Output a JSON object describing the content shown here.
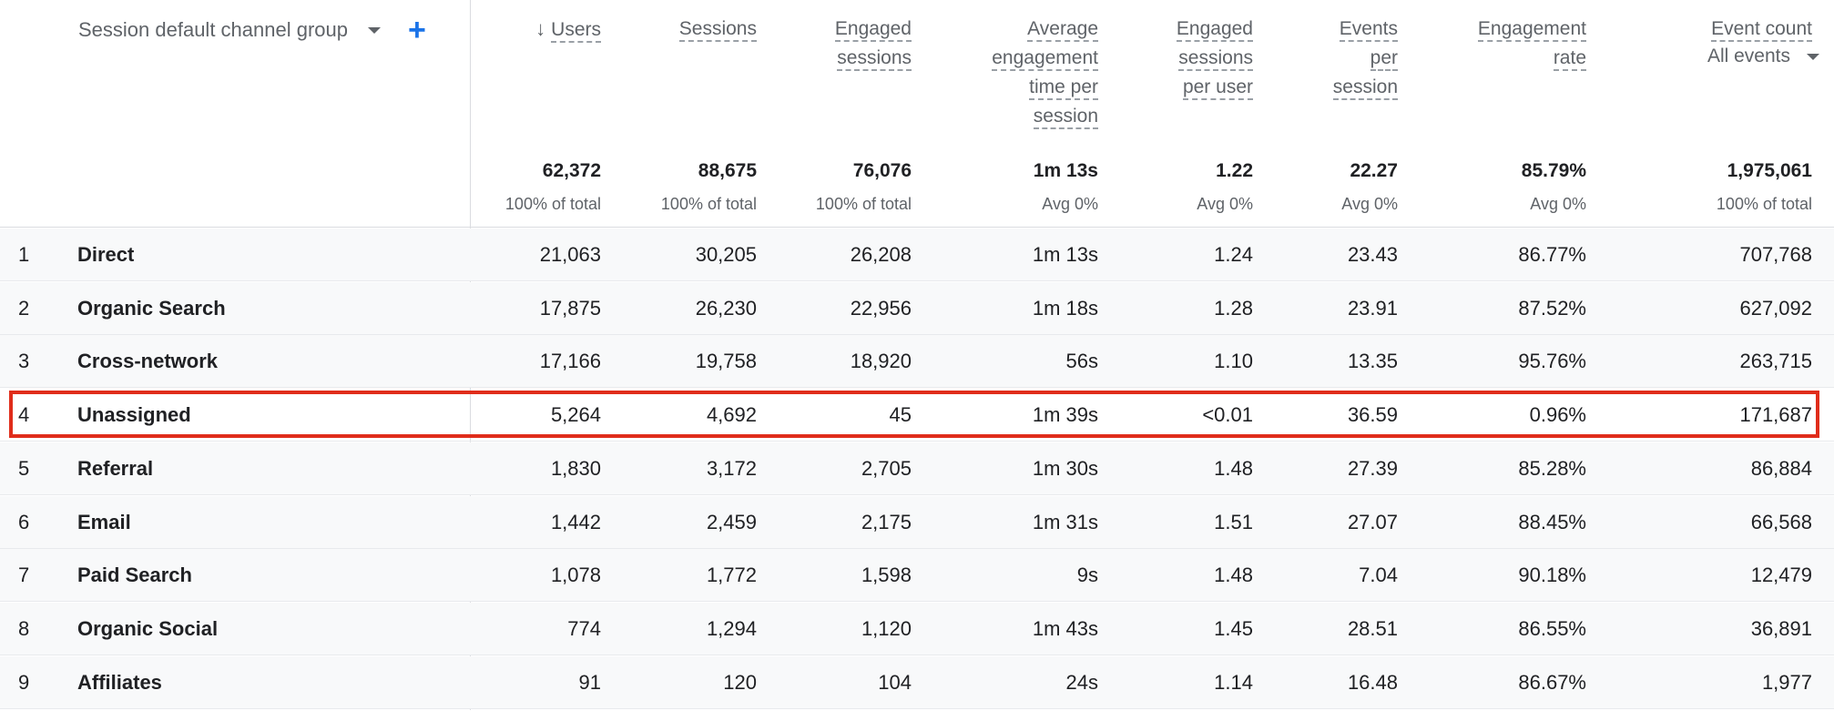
{
  "header": {
    "dimension_label": "Session default channel group",
    "sort_arrow": "↓",
    "add_symbol": "+",
    "columns": [
      {
        "key": "users",
        "lines": [
          "Users"
        ],
        "total": "62,372",
        "total_sub": "100% of total"
      },
      {
        "key": "sessions",
        "lines": [
          "Sessions"
        ],
        "total": "88,675",
        "total_sub": "100% of total"
      },
      {
        "key": "engaged_sessions",
        "lines": [
          "Engaged",
          "sessions"
        ],
        "total": "76,076",
        "total_sub": "100% of total"
      },
      {
        "key": "avg_engagement_time",
        "lines": [
          "Average",
          "engagement",
          "time per",
          "session"
        ],
        "total": "1m 13s",
        "total_sub": "Avg 0%"
      },
      {
        "key": "engaged_per_user",
        "lines": [
          "Engaged",
          "sessions",
          "per user"
        ],
        "total": "1.22",
        "total_sub": "Avg 0%"
      },
      {
        "key": "events_per_session",
        "lines": [
          "Events",
          "per",
          "session"
        ],
        "total": "22.27",
        "total_sub": "Avg 0%"
      },
      {
        "key": "engagement_rate",
        "lines": [
          "Engagement",
          "rate"
        ],
        "total": "85.79%",
        "total_sub": "Avg 0%"
      },
      {
        "key": "event_count",
        "lines": [
          "Event count"
        ],
        "total": "1,975,061",
        "total_sub": "100% of total",
        "selector": "All events"
      }
    ]
  },
  "rows": [
    {
      "rank": "1",
      "channel": "Direct",
      "values": [
        "21,063",
        "30,205",
        "26,208",
        "1m 13s",
        "1.24",
        "23.43",
        "86.77%",
        "707,768"
      ]
    },
    {
      "rank": "2",
      "channel": "Organic Search",
      "values": [
        "17,875",
        "26,230",
        "22,956",
        "1m 18s",
        "1.28",
        "23.91",
        "87.52%",
        "627,092"
      ]
    },
    {
      "rank": "3",
      "channel": "Cross-network",
      "values": [
        "17,166",
        "19,758",
        "18,920",
        "56s",
        "1.10",
        "13.35",
        "95.76%",
        "263,715"
      ]
    },
    {
      "rank": "4",
      "channel": "Unassigned",
      "values": [
        "5,264",
        "4,692",
        "45",
        "1m 39s",
        "<0.01",
        "36.59",
        "0.96%",
        "171,687"
      ]
    },
    {
      "rank": "5",
      "channel": "Referral",
      "values": [
        "1,830",
        "3,172",
        "2,705",
        "1m 30s",
        "1.48",
        "27.39",
        "85.28%",
        "86,884"
      ]
    },
    {
      "rank": "6",
      "channel": "Email",
      "values": [
        "1,442",
        "2,459",
        "2,175",
        "1m 31s",
        "1.51",
        "27.07",
        "88.45%",
        "66,568"
      ]
    },
    {
      "rank": "7",
      "channel": "Paid Search",
      "values": [
        "1,078",
        "1,772",
        "1,598",
        "9s",
        "1.48",
        "7.04",
        "90.18%",
        "12,479"
      ]
    },
    {
      "rank": "8",
      "channel": "Organic Social",
      "values": [
        "774",
        "1,294",
        "1,120",
        "1m 43s",
        "1.45",
        "28.51",
        "86.55%",
        "36,891"
      ]
    },
    {
      "rank": "9",
      "channel": "Affiliates",
      "values": [
        "91",
        "120",
        "104",
        "24s",
        "1.14",
        "16.48",
        "86.67%",
        "1,977"
      ]
    }
  ],
  "highlight_color": "#e02d1b",
  "accent_color": "#1a73e8"
}
